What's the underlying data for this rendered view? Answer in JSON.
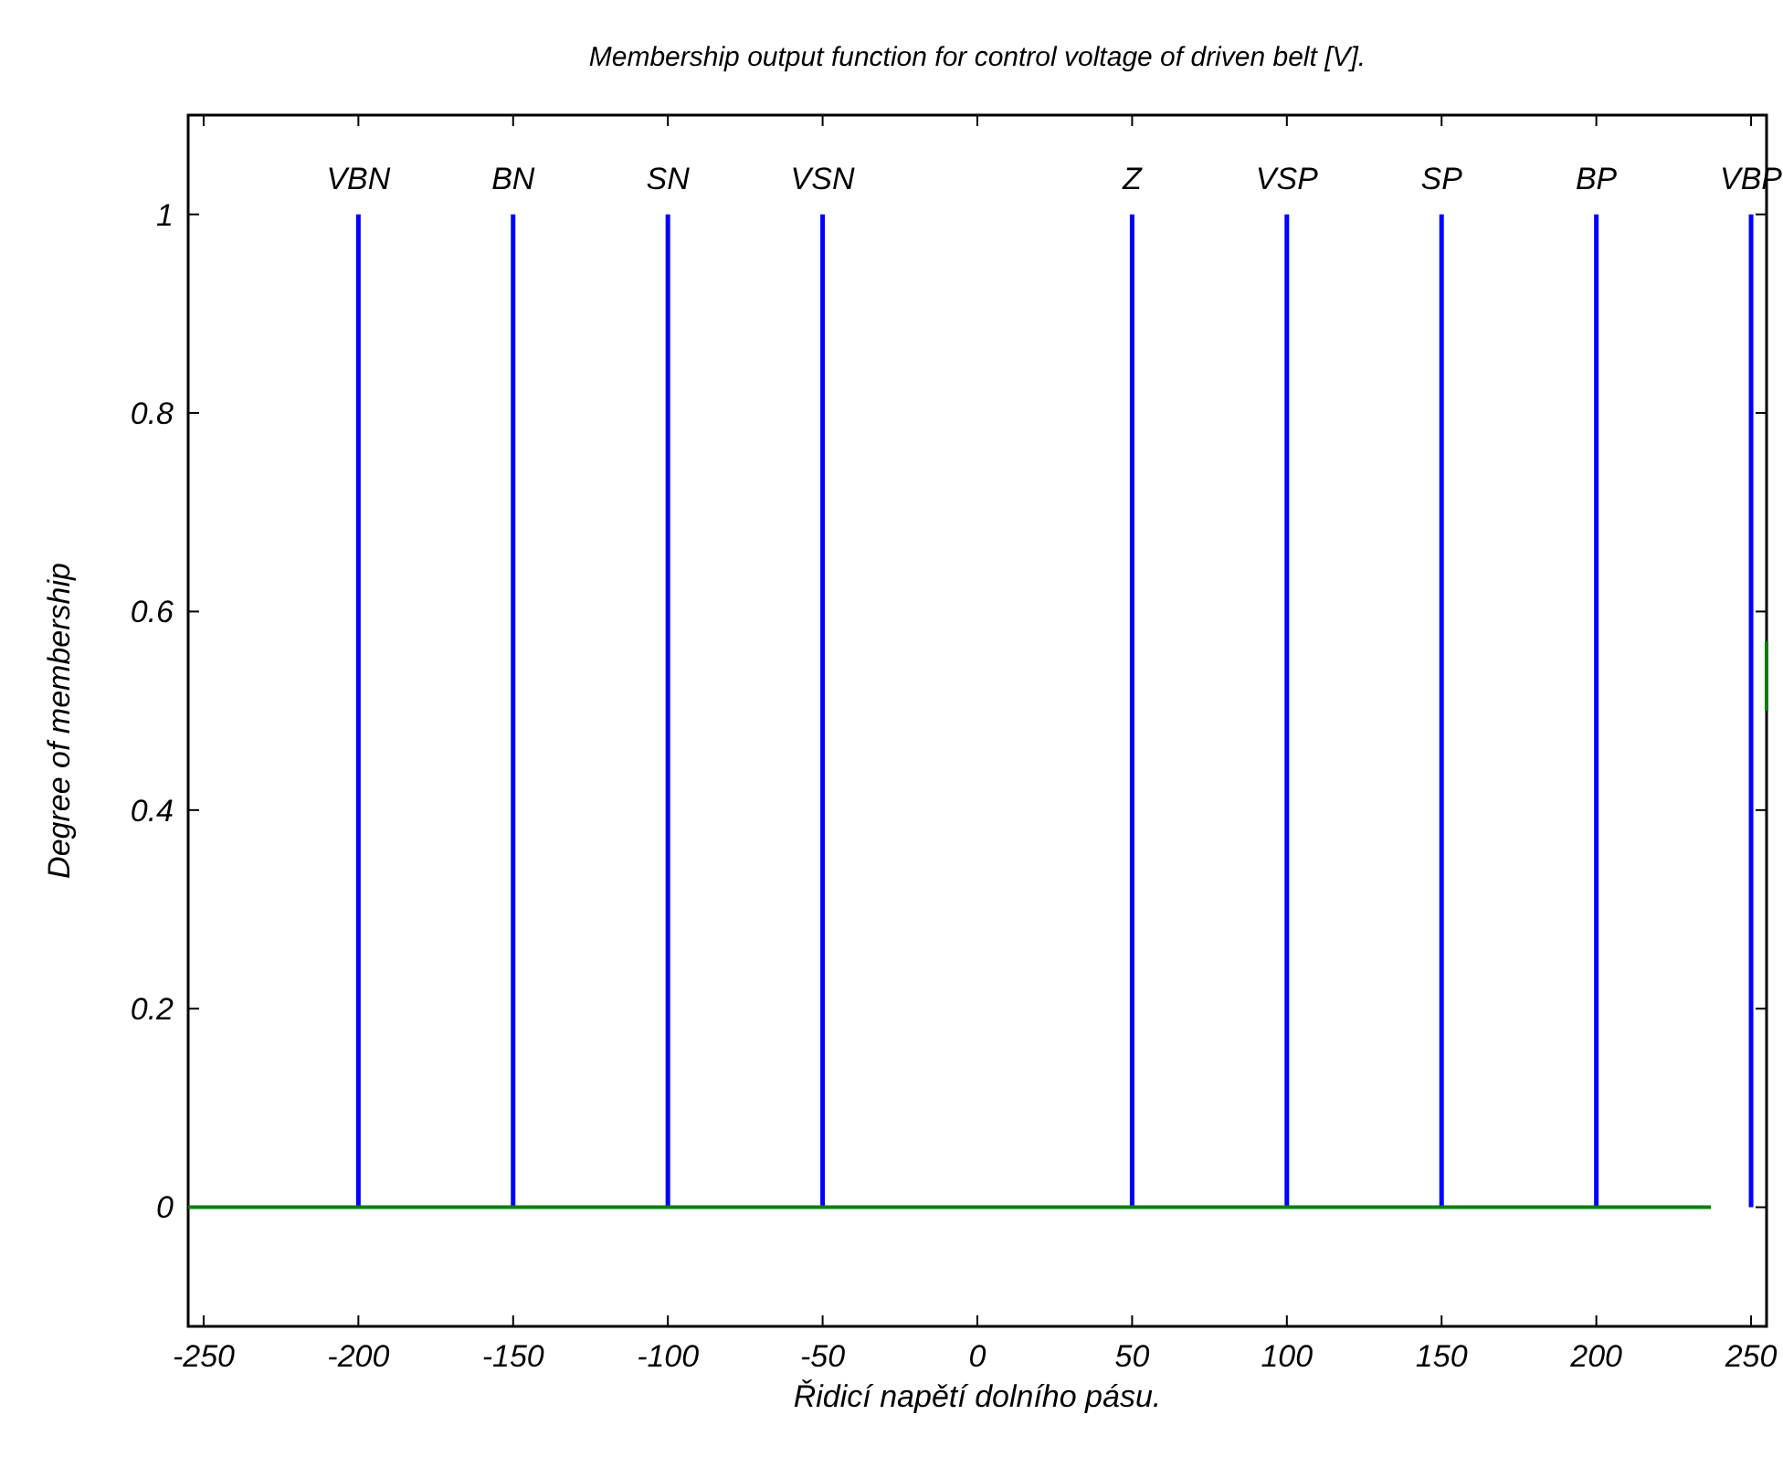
{
  "chart_data": {
    "type": "bar",
    "title": "Membership output function for control voltage of driven belt [V].",
    "xlabel": "Řidicí napětí dolního pásu.",
    "ylabel": "Degree of membership",
    "xlim": [
      -255,
      255
    ],
    "ylim": [
      -0.12,
      1.1
    ],
    "xticks": [
      -250,
      -200,
      -150,
      -100,
      -50,
      0,
      50,
      100,
      150,
      200,
      250
    ],
    "yticks": [
      0,
      0.2,
      0.4,
      0.6,
      0.8,
      1
    ],
    "series": [
      {
        "color": "#0000ff",
        "x": [
          -200,
          -150,
          -100,
          -50,
          50,
          100,
          150,
          200,
          250
        ],
        "values": [
          1,
          1,
          1,
          1,
          1,
          1,
          1,
          1,
          1
        ]
      },
      {
        "type": "line",
        "color": "#008000",
        "x": [
          -255,
          237,
          null,
          255,
          255
        ],
        "values": [
          0,
          0,
          null,
          0.5,
          0.57
        ]
      }
    ],
    "annotations": [
      {
        "text": "VBN",
        "x": -200,
        "y": 1
      },
      {
        "text": "BN",
        "x": -150,
        "y": 1
      },
      {
        "text": "SN",
        "x": -100,
        "y": 1
      },
      {
        "text": "VSN",
        "x": -50,
        "y": 1
      },
      {
        "text": "Z",
        "x": 50,
        "y": 1
      },
      {
        "text": "VSP",
        "x": 100,
        "y": 1
      },
      {
        "text": "SP",
        "x": 150,
        "y": 1
      },
      {
        "text": "BP",
        "x": 200,
        "y": 1
      },
      {
        "text": "VBP",
        "x": 250,
        "y": 1
      }
    ]
  }
}
